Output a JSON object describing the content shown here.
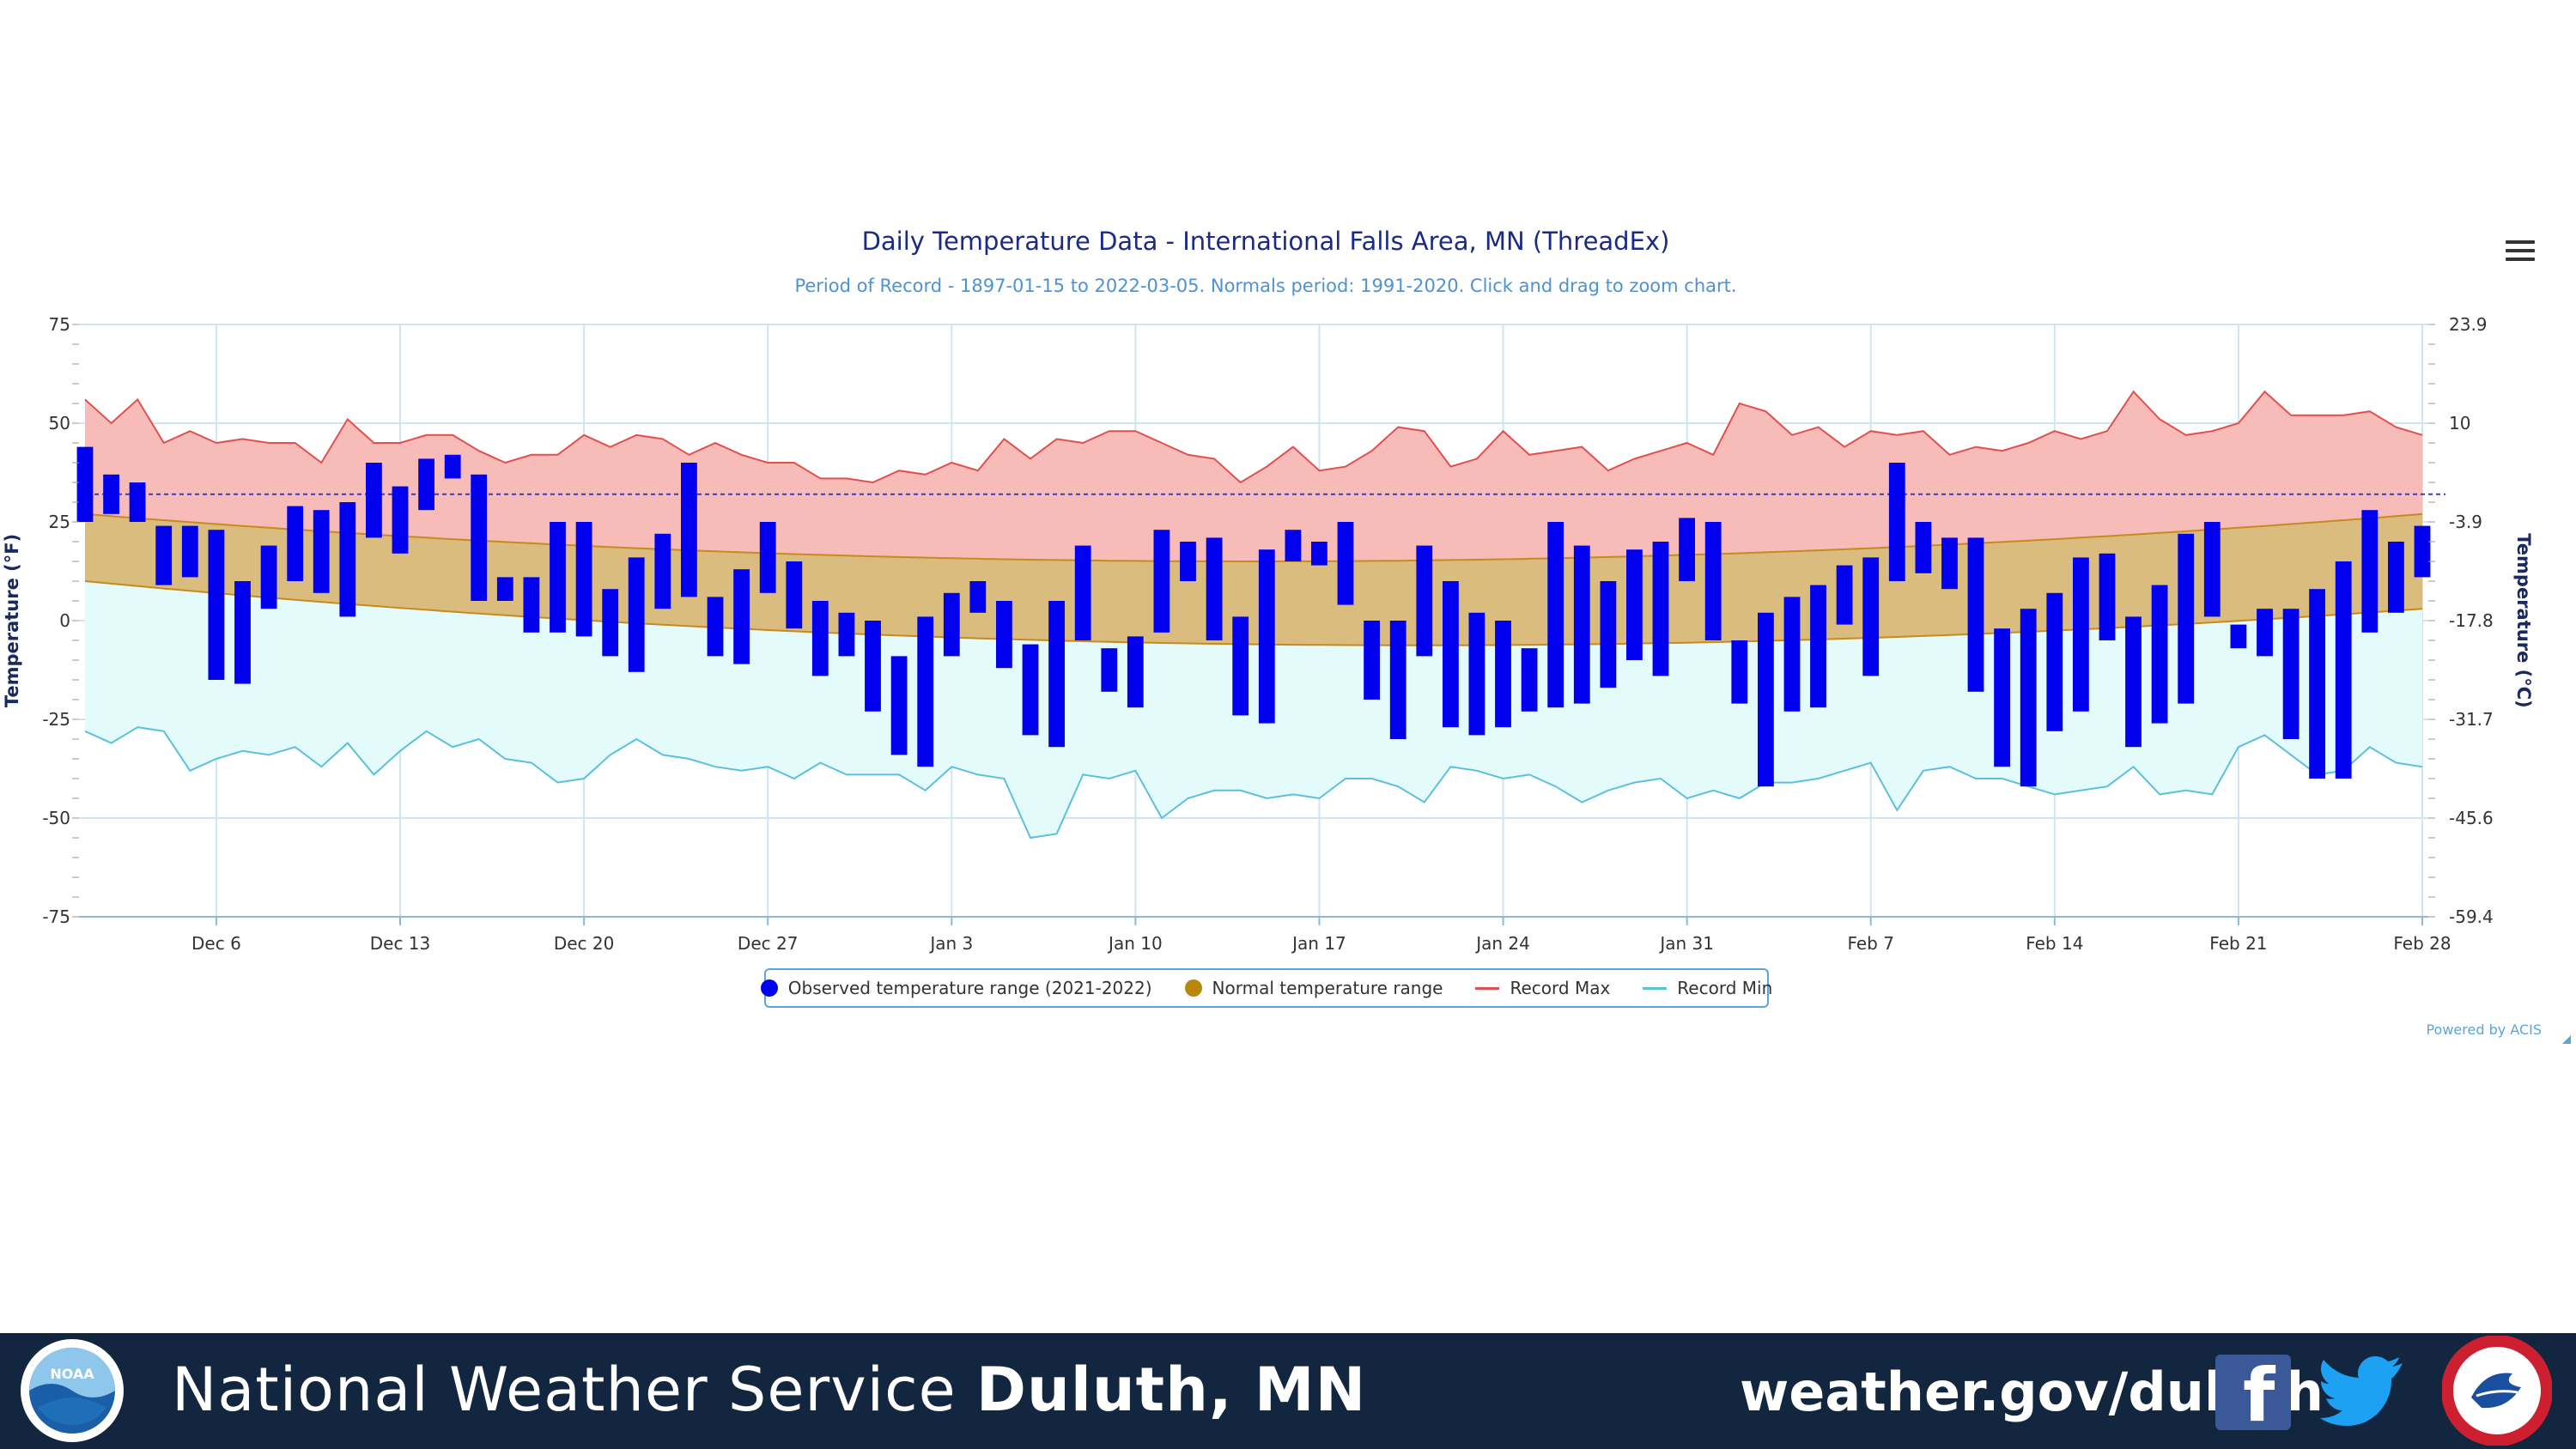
{
  "chart_data": {
    "type": "bar",
    "title": "Daily Temperature Data - International Falls Area, MN (ThreadEx)",
    "subtitle": "Period of Record - 1897-01-15 to 2022-03-05. Normals period: 1991-2020. Click and drag to zoom chart.",
    "ylabel_left": "Temperature (°F)",
    "ylabel_right": "Temperature (°C)",
    "ylim": [
      -75,
      75
    ],
    "yticks_left": [
      "75",
      "50",
      "25",
      "0",
      "-25",
      "-50",
      "-75"
    ],
    "yticks_right": [
      "23.9",
      "10",
      "-3.9",
      "-17.8",
      "-31.7",
      "-45.6",
      "-59.4"
    ],
    "x_start": "Dec 1",
    "x_end": "Feb 28",
    "x_tick_labels": [
      "Dec 6",
      "Dec 13",
      "Dec 20",
      "Dec 27",
      "Jan 3",
      "Jan 10",
      "Jan 17",
      "Jan 24",
      "Jan 31",
      "Feb 7",
      "Feb 14",
      "Feb 21",
      "Feb 28"
    ],
    "freezing_line_f": 32,
    "grid": true,
    "legend_position": "bottom-center",
    "series": [
      {
        "name": "Observed temperature range (2021-2022)",
        "color": "#0000ee",
        "low": [
          25,
          27,
          25,
          9,
          11,
          -15,
          -16,
          3,
          10,
          7,
          1,
          21,
          17,
          28,
          36,
          5,
          5,
          -3,
          -3,
          -4,
          -9,
          -13,
          3,
          6,
          -9,
          -11,
          7,
          -2,
          -14,
          -9,
          -23,
          -34,
          -37,
          -9,
          2,
          -12,
          -29,
          -32,
          -5,
          -18,
          -22,
          -3,
          10,
          -5,
          -24,
          -26,
          15,
          14,
          4,
          -20,
          -30,
          -9,
          -27,
          -29,
          -27,
          -23,
          -22,
          -21,
          -17,
          -10,
          -14,
          10,
          -5,
          -21,
          -42,
          -23,
          -22,
          -1,
          -14,
          10,
          12,
          8,
          -18,
          -37,
          -42,
          -28,
          -23,
          -5,
          -32,
          -26,
          -21,
          1,
          -7,
          -9,
          -30,
          -40,
          -40,
          -3,
          2,
          11
        ],
        "high": [
          44,
          37,
          35,
          24,
          24,
          23,
          10,
          19,
          29,
          28,
          30,
          40,
          34,
          41,
          42,
          37,
          11,
          11,
          25,
          25,
          8,
          16,
          22,
          40,
          6,
          13,
          25,
          15,
          5,
          2,
          0,
          -9,
          1,
          7,
          10,
          5,
          -6,
          5,
          19,
          -7,
          -4,
          23,
          20,
          21,
          1,
          18,
          23,
          20,
          25,
          0,
          0,
          19,
          10,
          2,
          0,
          -7,
          25,
          19,
          10,
          18,
          20,
          26,
          25,
          -5,
          2,
          6,
          9,
          14,
          16,
          40,
          25,
          21,
          21,
          -2,
          3,
          7,
          16,
          17,
          1,
          9,
          22,
          25,
          -1,
          3,
          3,
          8,
          15,
          28,
          20,
          24
        ]
      },
      {
        "name": "Normal temperature range",
        "color": "#b8860b",
        "high_start": 27,
        "high_mid": 15,
        "high_end": 27,
        "low_start": 10,
        "low_mid": -6,
        "low_end": 3
      },
      {
        "name": "Record Max",
        "color": "#e05050",
        "values": [
          56,
          50,
          56,
          45,
          48,
          45,
          46,
          45,
          45,
          40,
          51,
          45,
          45,
          47,
          47,
          43,
          40,
          42,
          42,
          47,
          44,
          47,
          46,
          42,
          45,
          42,
          40,
          40,
          36,
          36,
          35,
          38,
          37,
          40,
          38,
          46,
          41,
          46,
          45,
          48,
          48,
          45,
          42,
          41,
          35,
          39,
          44,
          38,
          39,
          43,
          49,
          48,
          39,
          41,
          48,
          42,
          43,
          44,
          38,
          41,
          43,
          45,
          42,
          55,
          53,
          47,
          49,
          44,
          48,
          47,
          48,
          42,
          44,
          43,
          45,
          48,
          46,
          48,
          58,
          51,
          47,
          48,
          50,
          58,
          52,
          52,
          52,
          53,
          49,
          47
        ]
      },
      {
        "name": "Record Min",
        "color": "#5bc0de",
        "values": [
          -28,
          -31,
          -27,
          -28,
          -38,
          -35,
          -33,
          -34,
          -32,
          -37,
          -31,
          -39,
          -33,
          -28,
          -32,
          -30,
          -35,
          -36,
          -41,
          -40,
          -34,
          -30,
          -34,
          -35,
          -37,
          -38,
          -37,
          -40,
          -36,
          -39,
          -39,
          -39,
          -43,
          -37,
          -39,
          -40,
          -55,
          -54,
          -39,
          -40,
          -38,
          -50,
          -45,
          -43,
          -43,
          -45,
          -44,
          -45,
          -40,
          -40,
          -42,
          -46,
          -37,
          -38,
          -40,
          -39,
          -42,
          -46,
          -43,
          -41,
          -40,
          -45,
          -43,
          -45,
          -41,
          -41,
          -40,
          -38,
          -36,
          -48,
          -38,
          -37,
          -40,
          -40,
          -42,
          -44,
          -43,
          -42,
          -37,
          -44,
          -43,
          -44,
          -32,
          -29,
          -34,
          -39,
          -38,
          -32,
          -36,
          -37
        ]
      }
    ]
  },
  "ui": {
    "menu_icon": "hamburger-menu-icon",
    "credit": "Powered by ACIS"
  },
  "footer": {
    "title_regular": "National Weather Service",
    "title_bold": "Duluth, MN",
    "url": "weather.gov/duluth",
    "facebook_icon": "facebook-icon",
    "twitter_icon": "twitter-icon",
    "background": "#12263f"
  }
}
